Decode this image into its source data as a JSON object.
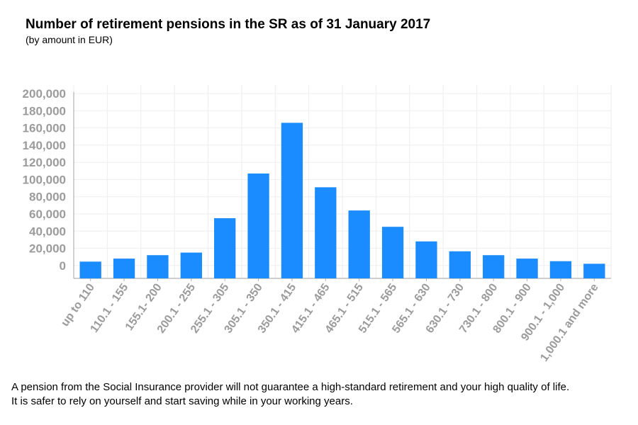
{
  "header": {
    "title": "Number of retirement pensions in the SR as of 31 January 2017",
    "subtitle": "(by amount in EUR)"
  },
  "footer": {
    "line1": "A pension from the Social Insurance provider will not guarantee a high-standard retirement and your high quality of life.",
    "line2": "It is safer to rely on yourself and start saving while in your working years."
  },
  "colors": {
    "bar": "#1a8cff",
    "tick_text": "#9b9b9b",
    "axis": "#b0b0b0",
    "grid": "#eeeeee"
  },
  "chart_data": {
    "type": "bar",
    "title": "Number of retirement pensions in the SR as of 31 January 2017",
    "subtitle": "(by amount in EUR)",
    "xlabel": "",
    "ylabel": "",
    "categories": [
      "up to 110",
      "110.1 - 155",
      "155.1- 200",
      "200.1 - 255",
      "255.1 - 305",
      "305.1 - 350",
      "350.1 - 415",
      "415.1 - 465",
      "465.1 - 515",
      "515.1 - 565",
      "565.1 - 630",
      "630.1 - 730",
      "730.1 - 800",
      "800.1 - 900",
      "900.1 - 1,000",
      "1,000.1 and more"
    ],
    "values": [
      4500,
      8000,
      12000,
      15000,
      55000,
      107000,
      166000,
      91000,
      64000,
      45000,
      28000,
      16500,
      12000,
      8000,
      5000,
      2000
    ],
    "ylim": [
      -15000,
      210000
    ],
    "yticks": [
      0,
      20000,
      40000,
      60000,
      80000,
      100000,
      120000,
      140000,
      160000,
      180000,
      200000
    ],
    "ytick_labels": [
      "0",
      "20,000",
      "40,000",
      "60,000",
      "80,000",
      "100,000",
      "120,000",
      "140,000",
      "160,000",
      "180,000",
      "200,000"
    ],
    "grid": true,
    "legend": "none"
  }
}
